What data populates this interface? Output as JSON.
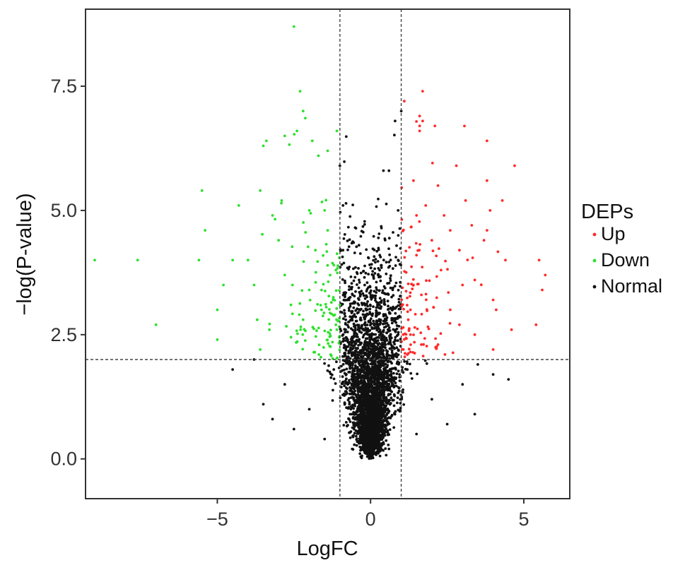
{
  "chart_data": {
    "type": "scatter",
    "title": "",
    "xlabel": "LogFC",
    "ylabel": "−log(P-value)",
    "xlim": [
      -9.3,
      6.5
    ],
    "ylim": [
      -0.8,
      9.05
    ],
    "xticks": [
      -5,
      0,
      5
    ],
    "xtick_labels": [
      "−5",
      "0",
      "5"
    ],
    "yticks": [
      0,
      2.5,
      5,
      7.5
    ],
    "ytick_labels": [
      "0.0",
      "2.5",
      "5.0",
      "7.5"
    ],
    "grid": false,
    "thresholds": {
      "logfc": [
        -1,
        1
      ],
      "neg_log_p": 2
    },
    "legend": {
      "title": "DEPs",
      "placement": "right",
      "entries": [
        {
          "label": "Up",
          "color": "#ff2a2a"
        },
        {
          "label": "Down",
          "color": "#2ee02e"
        },
        {
          "label": "Normal",
          "color": "#111111"
        }
      ]
    },
    "series": [
      {
        "name": "Up",
        "color": "#ff2a2a",
        "approx_count": 700,
        "points": [
          [
            1.7,
            7.4
          ],
          [
            1.1,
            7.2
          ],
          [
            1.6,
            6.9
          ],
          [
            1.6,
            6.7
          ],
          [
            1.7,
            6.8
          ],
          [
            1.6,
            6.6
          ],
          [
            2.1,
            6.7
          ],
          [
            2.8,
            5.9
          ],
          [
            3.8,
            6.4
          ],
          [
            4.7,
            5.9
          ],
          [
            1.4,
            5.6
          ],
          [
            2.2,
            5.5
          ],
          [
            3.1,
            5.2
          ],
          [
            3.8,
            5.6
          ],
          [
            4.3,
            5.2
          ],
          [
            3.9,
            5.0
          ],
          [
            2.6,
            4.6
          ],
          [
            3.8,
            4.6
          ],
          [
            3.7,
            4.4
          ],
          [
            2.9,
            4.2
          ],
          [
            4.4,
            4.0
          ],
          [
            5.5,
            4.0
          ],
          [
            5.7,
            3.7
          ],
          [
            5.6,
            3.4
          ],
          [
            3.4,
            3.6
          ],
          [
            4.0,
            3.2
          ],
          [
            4.6,
            2.6
          ],
          [
            5.4,
            2.7
          ],
          [
            2.9,
            2.7
          ],
          [
            3.4,
            2.5
          ],
          [
            4.0,
            2.2
          ],
          [
            2.2,
            2.3
          ],
          [
            1.2,
            2.1
          ],
          [
            1.3,
            2.5
          ],
          [
            1.3,
            3.0
          ],
          [
            1.4,
            3.5
          ],
          [
            1.5,
            4.1
          ],
          [
            1.5,
            4.9
          ],
          [
            1.8,
            5.1
          ],
          [
            2.0,
            4.4
          ],
          [
            2.3,
            3.8
          ],
          [
            2.6,
            3.0
          ],
          [
            3.0,
            3.5
          ],
          [
            2.4,
            4.9
          ],
          [
            3.3,
            4.7
          ],
          [
            4.1,
            3.0
          ]
        ],
        "note": ""
      },
      {
        "name": "Down",
        "color": "#2ee02e",
        "approx_count": 650,
        "points": [
          [
            -2.5,
            8.7
          ],
          [
            -2.3,
            7.4
          ],
          [
            -2.2,
            7.0
          ],
          [
            -2.4,
            6.6
          ],
          [
            -2.8,
            6.5
          ],
          [
            -3.4,
            6.4
          ],
          [
            -3.5,
            6.3
          ],
          [
            -1.9,
            6.4
          ],
          [
            -1.1,
            6.6
          ],
          [
            -1.7,
            6.1
          ],
          [
            -1.4,
            6.2
          ],
          [
            -5.5,
            5.4
          ],
          [
            -5.4,
            4.6
          ],
          [
            -5.6,
            4.0
          ],
          [
            -7.6,
            4.0
          ],
          [
            -9.0,
            4.0
          ],
          [
            -7.0,
            2.7
          ],
          [
            -5.0,
            3.0
          ],
          [
            -5.0,
            2.4
          ],
          [
            -4.8,
            3.5
          ],
          [
            -4.5,
            4.0
          ],
          [
            -4.3,
            5.1
          ],
          [
            -4.0,
            4.0
          ],
          [
            -3.8,
            3.5
          ],
          [
            -3.7,
            2.8
          ],
          [
            -3.6,
            2.2
          ],
          [
            -3.3,
            2.6
          ],
          [
            -3.0,
            4.4
          ],
          [
            -2.8,
            3.7
          ],
          [
            -2.6,
            3.1
          ],
          [
            -2.2,
            2.8
          ],
          [
            -2.0,
            3.4
          ],
          [
            -1.8,
            4.2
          ],
          [
            -1.6,
            3.0
          ],
          [
            -1.4,
            4.6
          ],
          [
            -1.3,
            2.1
          ],
          [
            -1.2,
            3.9
          ],
          [
            -1.1,
            2.6
          ],
          [
            -1.5,
            5.0
          ],
          [
            -2.0,
            5.0
          ],
          [
            -2.9,
            5.2
          ],
          [
            -3.2,
            4.9
          ],
          [
            -3.6,
            5.4
          ]
        ],
        "note": ""
      },
      {
        "name": "Normal",
        "color": "#111111",
        "approx_count": 2600,
        "points": [
          [
            0.0,
            0.05
          ],
          [
            0.1,
            0.3
          ],
          [
            -0.1,
            0.4
          ],
          [
            0.2,
            0.8
          ],
          [
            -0.2,
            0.9
          ],
          [
            0.3,
            1.3
          ],
          [
            -0.3,
            1.4
          ],
          [
            0.5,
            2.0
          ],
          [
            -0.5,
            2.1
          ],
          [
            0.7,
            3.0
          ],
          [
            -0.7,
            3.2
          ],
          [
            0.9,
            4.0
          ],
          [
            -0.9,
            4.2
          ],
          [
            0.9,
            5.0
          ],
          [
            -0.9,
            5.1
          ],
          [
            0.8,
            6.8
          ],
          [
            1.0,
            7.0
          ],
          [
            0.6,
            5.8
          ],
          [
            -1.0,
            5.9
          ],
          [
            0.3,
            4.1
          ],
          [
            -3.5,
            1.1
          ],
          [
            -3.2,
            0.8
          ],
          [
            -2.8,
            1.5
          ],
          [
            -2.5,
            0.6
          ],
          [
            -2.0,
            1.0
          ],
          [
            -1.5,
            0.4
          ],
          [
            1.5,
            0.5
          ],
          [
            2.0,
            1.2
          ],
          [
            2.5,
            0.7
          ],
          [
            3.0,
            1.5
          ],
          [
            3.5,
            1.9
          ],
          [
            4.0,
            1.7
          ],
          [
            4.5,
            1.6
          ],
          [
            -4.5,
            1.8
          ],
          [
            -3.8,
            2.0
          ],
          [
            3.4,
            0.9
          ],
          [
            -1.2,
            1.8
          ],
          [
            1.2,
            1.8
          ],
          [
            -0.6,
            0.2
          ],
          [
            0.6,
            0.2
          ]
        ],
        "note": ""
      }
    ]
  }
}
